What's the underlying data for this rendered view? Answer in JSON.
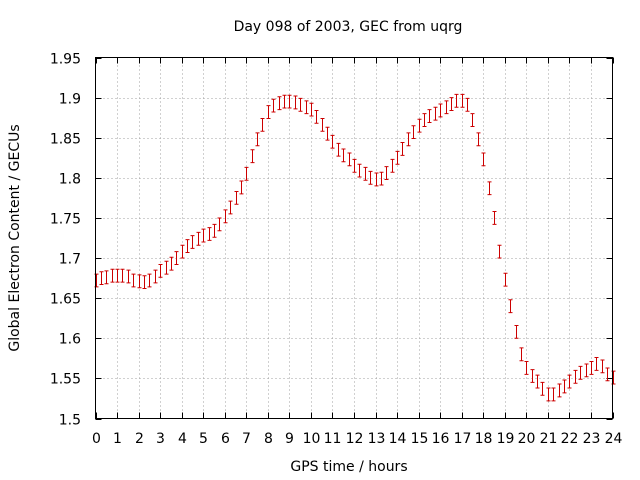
{
  "chart_data": {
    "type": "scatter",
    "title": "Day 098 of 2003, GEC from uqrg",
    "xlabel": "GPS time / hours",
    "ylabel": "Global Electron Content / GECUs",
    "xlim": [
      0,
      24
    ],
    "ylim": [
      1.5,
      1.95
    ],
    "xticks": [
      0,
      1,
      2,
      3,
      4,
      5,
      6,
      7,
      8,
      9,
      10,
      11,
      12,
      13,
      14,
      15,
      16,
      17,
      18,
      19,
      20,
      21,
      22,
      23,
      24
    ],
    "yticks": [
      1.5,
      1.55,
      1.6,
      1.65,
      1.7,
      1.75,
      1.8,
      1.85,
      1.9,
      1.95
    ],
    "ytick_labels": [
      "1.5",
      "1.55",
      "1.6",
      "1.65",
      "1.7",
      "1.75",
      "1.8",
      "1.85",
      "1.9",
      "1.95"
    ],
    "grid": true,
    "series": [
      {
        "color": "#cc0000",
        "marker": "errorbar",
        "x": [
          0,
          0.25,
          0.5,
          0.75,
          1,
          1.25,
          1.5,
          1.75,
          2,
          2.25,
          2.5,
          2.75,
          3,
          3.25,
          3.5,
          3.75,
          4,
          4.25,
          4.5,
          4.75,
          5,
          5.25,
          5.5,
          5.75,
          6,
          6.25,
          6.5,
          6.75,
          7,
          7.25,
          7.5,
          7.75,
          8,
          8.25,
          8.5,
          8.75,
          9,
          9.25,
          9.5,
          9.75,
          10,
          10.25,
          10.5,
          10.75,
          11,
          11.25,
          11.5,
          11.75,
          12,
          12.25,
          12.5,
          12.75,
          13,
          13.25,
          13.5,
          13.75,
          14,
          14.25,
          14.5,
          14.75,
          15,
          15.25,
          15.5,
          15.75,
          16,
          16.25,
          16.5,
          16.75,
          17,
          17.25,
          17.5,
          17.75,
          18,
          18.25,
          18.5,
          18.75,
          19,
          19.25,
          19.5,
          19.75,
          20,
          20.25,
          20.5,
          20.75,
          21,
          21.25,
          21.5,
          21.75,
          22,
          22.25,
          22.5,
          22.75,
          23,
          23.25,
          23.5,
          23.75,
          24
        ],
        "y": [
          1.672,
          1.675,
          1.676,
          1.678,
          1.678,
          1.678,
          1.677,
          1.672,
          1.671,
          1.67,
          1.672,
          1.677,
          1.684,
          1.688,
          1.693,
          1.7,
          1.708,
          1.715,
          1.72,
          1.724,
          1.728,
          1.73,
          1.734,
          1.742,
          1.752,
          1.763,
          1.775,
          1.788,
          1.805,
          1.827,
          1.848,
          1.866,
          1.882,
          1.89,
          1.893,
          1.895,
          1.895,
          1.894,
          1.891,
          1.888,
          1.885,
          1.876,
          1.866,
          1.855,
          1.845,
          1.835,
          1.828,
          1.823,
          1.815,
          1.809,
          1.805,
          1.8,
          1.798,
          1.799,
          1.806,
          1.815,
          1.825,
          1.836,
          1.848,
          1.857,
          1.865,
          1.872,
          1.877,
          1.88,
          1.884,
          1.888,
          1.892,
          1.896,
          1.896,
          1.891,
          1.872,
          1.848,
          1.823,
          1.787,
          1.75,
          1.708,
          1.673,
          1.64,
          1.608,
          1.58,
          1.563,
          1.553,
          1.546,
          1.537,
          1.53,
          1.53,
          1.535,
          1.54,
          1.546,
          1.552,
          1.557,
          1.56,
          1.563,
          1.568,
          1.565,
          1.555,
          1.551
        ],
        "yerr": 0.008
      }
    ]
  }
}
